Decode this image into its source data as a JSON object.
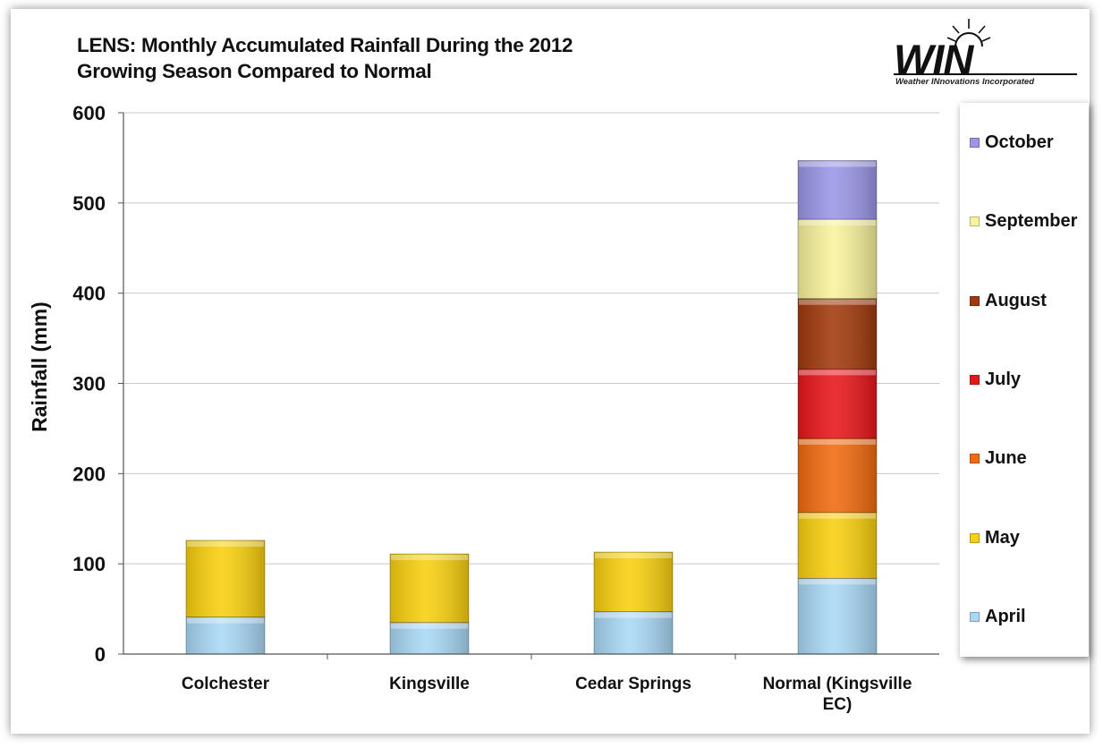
{
  "title": {
    "line1": "LENS: Monthly Accumulated Rainfall During the 2012",
    "line2": "Growing Season Compared to Normal"
  },
  "logo": {
    "word": "WIN",
    "tagline": "Weather INnovations Incorporated",
    "icon": "sun-icon"
  },
  "colors": {
    "April": "#a9d8f5",
    "May": "#f9d00e",
    "June": "#f16a0f",
    "July": "#e8161a",
    "August": "#a1390c",
    "September": "#f8f39c",
    "October": "#9b96e7"
  },
  "chart_data": {
    "type": "bar",
    "stacked": true,
    "title": "LENS: Monthly Accumulated Rainfall During the 2012 Growing Season Compared to Normal",
    "xlabel": "",
    "ylabel": "Rainfall (mm)",
    "ylim": [
      0,
      600
    ],
    "yticks": [
      0,
      100,
      200,
      300,
      400,
      500,
      600
    ],
    "grid": true,
    "legend": "right",
    "categories": [
      "Colchester",
      "Kingsville",
      "Cedar Springs",
      "Normal (Kingsville EC)"
    ],
    "series": [
      {
        "name": "April",
        "values": [
          41,
          35,
          47,
          84
        ]
      },
      {
        "name": "May",
        "values": [
          85,
          76,
          66,
          73
        ]
      },
      {
        "name": "June",
        "values": [
          0,
          0,
          0,
          82
        ]
      },
      {
        "name": "July",
        "values": [
          0,
          0,
          0,
          77
        ]
      },
      {
        "name": "August",
        "values": [
          0,
          0,
          0,
          78
        ]
      },
      {
        "name": "September",
        "values": [
          0,
          0,
          0,
          88
        ]
      },
      {
        "name": "October",
        "values": [
          0,
          0,
          0,
          65
        ]
      }
    ]
  }
}
